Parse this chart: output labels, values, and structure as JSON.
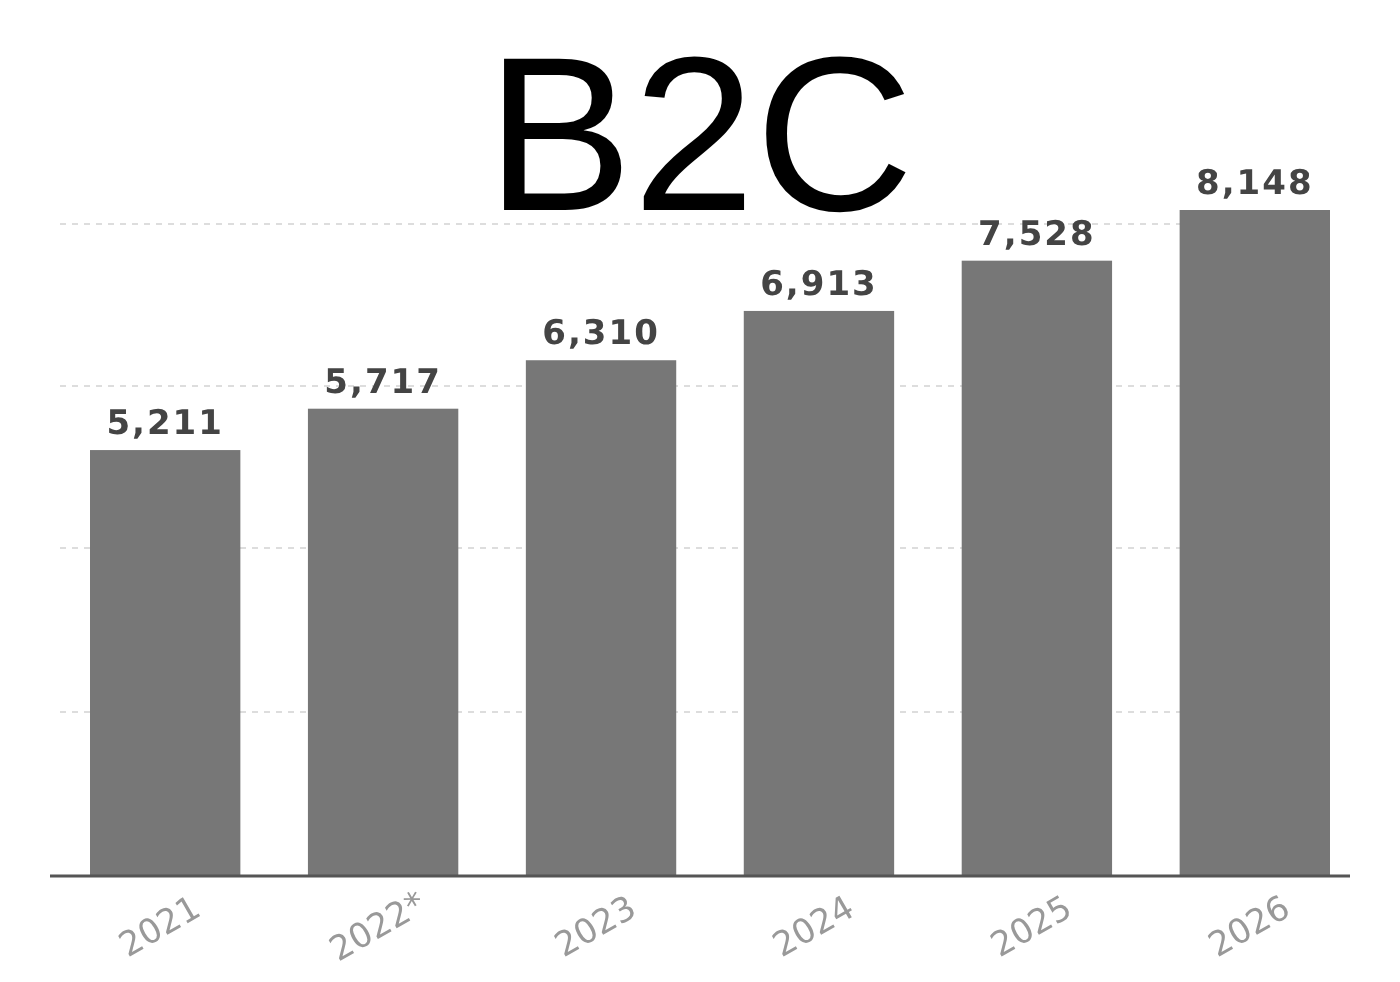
{
  "chart_data": {
    "type": "bar",
    "title": "B2C",
    "categories": [
      "2021",
      "2022*",
      "2023",
      "2024",
      "2025",
      "2026"
    ],
    "values": [
      5211,
      5717,
      6310,
      6913,
      7528,
      8148
    ],
    "value_labels": [
      "5,211",
      "5,717",
      "6,310",
      "6,913",
      "7,528",
      "8,148"
    ],
    "color": "#777777",
    "grid": "y",
    "tick_labels": "x"
  }
}
